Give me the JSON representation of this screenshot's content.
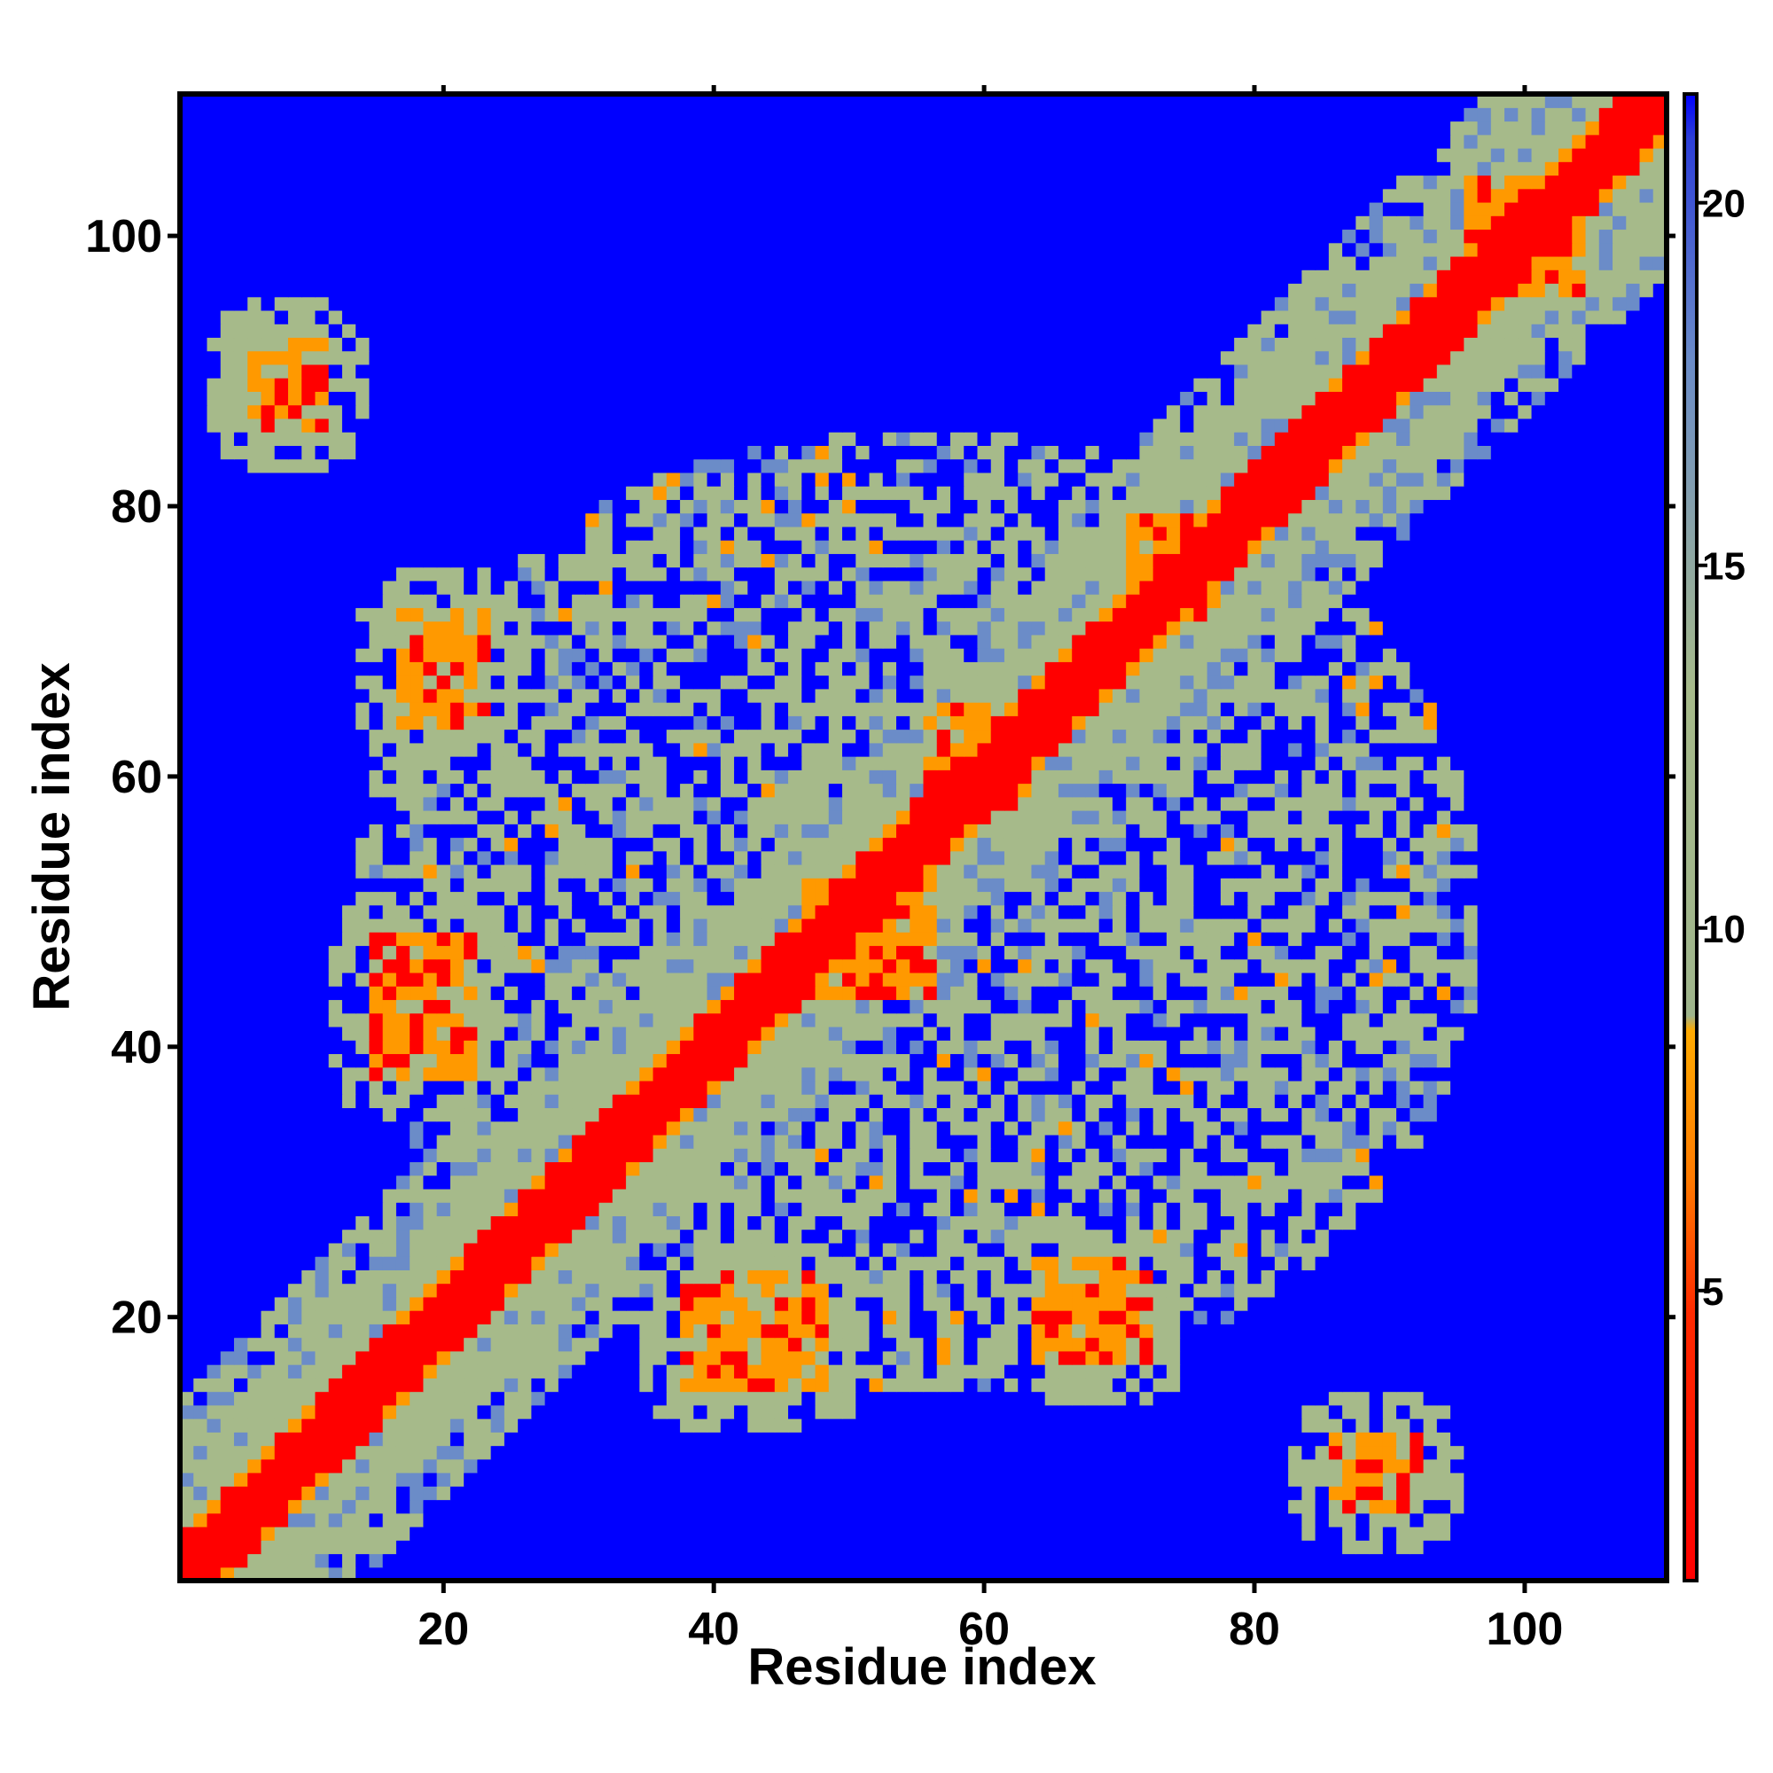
{
  "chart_data": {
    "type": "heatmap",
    "title": "",
    "xlabel": "Residue index",
    "ylabel": "Residue index",
    "n_residues": 110,
    "xlim": [
      1,
      110
    ],
    "ylim": [
      1,
      110
    ],
    "x_ticks": [
      20,
      40,
      60,
      80,
      100
    ],
    "x_tick_labels": [
      "20",
      "40",
      "60",
      "80",
      "100"
    ],
    "y_ticks": [
      20,
      40,
      60,
      80,
      100
    ],
    "y_tick_labels": [
      "20",
      "40",
      "60",
      "80",
      "100"
    ],
    "colorbar": {
      "range": [
        1.0,
        21.5
      ],
      "ticks": [
        5,
        10,
        15,
        20
      ],
      "tick_labels": [
        "5",
        "10",
        "15",
        "20"
      ],
      "position": "right"
    },
    "colors": {
      "near": "#ff0000",
      "contact": "#ff9900",
      "medium_near": "#a6ba8a",
      "medium_far": "#6b8cc8",
      "far": "#0000ff"
    },
    "matrix_description_values": {
      "diagonal_band_width": 2,
      "close_contact_distance": 6,
      "medium_distance": 12,
      "far_distance": 21.5
    },
    "contact_regions": [
      {
        "x": [
          6,
          11
        ],
        "y": [
          86,
          92
        ]
      },
      {
        "x": [
          86,
          92
        ],
        "y": [
          6,
          11
        ]
      },
      {
        "x": [
          17,
          23
        ],
        "y": [
          64,
          72
        ]
      },
      {
        "x": [
          64,
          72
        ],
        "y": [
          17,
          23
        ]
      },
      {
        "x": [
          15,
          22
        ],
        "y": [
          38,
          48
        ]
      },
      {
        "x": [
          38,
          48
        ],
        "y": [
          15,
          22
        ]
      },
      {
        "x": [
          40,
          47
        ],
        "y": [
          16,
          23
        ]
      },
      {
        "x": [
          64,
          70
        ],
        "y": [
          18,
          24
        ]
      },
      {
        "x": [
          47,
          56
        ],
        "y": [
          44,
          52
        ]
      },
      {
        "x": [
          56,
          63
        ],
        "y": [
          58,
          65
        ]
      },
      {
        "x": [
          71,
          77
        ],
        "y": [
          72,
          79
        ]
      },
      {
        "x": [
          96,
          104
        ],
        "y": [
          96,
          104
        ]
      }
    ]
  }
}
